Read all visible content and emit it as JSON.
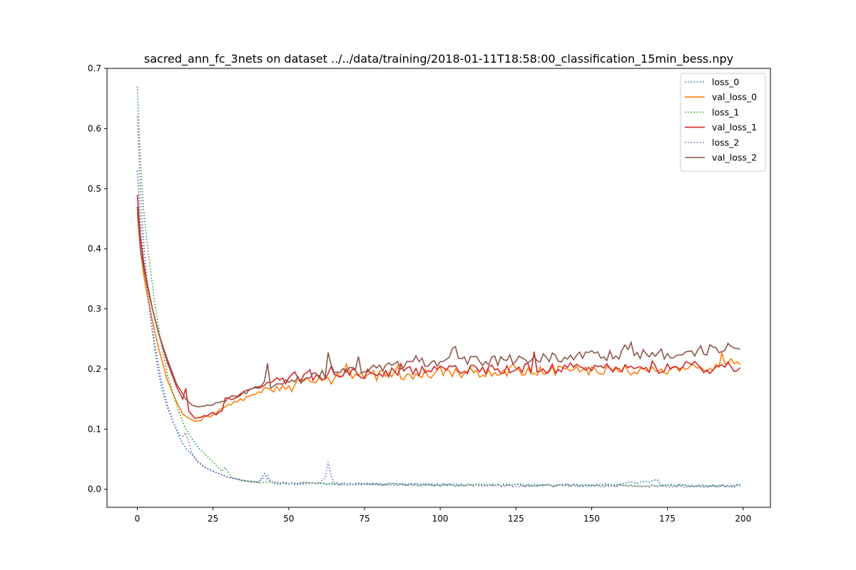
{
  "chart_data": {
    "type": "line",
    "title": "sacred_ann_fc_3nets on dataset ../../data/training/2018-01-11T18:58:00_classification_15min_bess.npy",
    "xlabel": "",
    "ylabel": "",
    "xlim": [
      -10,
      209
    ],
    "ylim": [
      -0.03,
      0.7
    ],
    "x_ticks": [
      0,
      25,
      50,
      75,
      100,
      125,
      150,
      175,
      200
    ],
    "y_ticks": [
      0.0,
      0.1,
      0.2,
      0.3,
      0.4,
      0.5,
      0.6,
      0.7
    ],
    "x_tick_labels": [
      "0",
      "25",
      "50",
      "75",
      "100",
      "125",
      "150",
      "175",
      "200"
    ],
    "y_tick_labels": [
      "0.0",
      "0.1",
      "0.2",
      "0.3",
      "0.4",
      "0.5",
      "0.6",
      "0.7"
    ],
    "grid": false,
    "legend_position": "top-right",
    "epochs": 200,
    "series": [
      {
        "name": "loss_0",
        "color": "#1f77b4",
        "style": "dotted",
        "anchors": [
          [
            0,
            0.53
          ],
          [
            1,
            0.45
          ],
          [
            2,
            0.39
          ],
          [
            3,
            0.34
          ],
          [
            4,
            0.3
          ],
          [
            5,
            0.26
          ],
          [
            6,
            0.225
          ],
          [
            7,
            0.195
          ],
          [
            8,
            0.17
          ],
          [
            10,
            0.135
          ],
          [
            12,
            0.11
          ],
          [
            14,
            0.085
          ],
          [
            16,
            0.068
          ],
          [
            18,
            0.058
          ],
          [
            20,
            0.045
          ],
          [
            22,
            0.037
          ],
          [
            25,
            0.03
          ],
          [
            30,
            0.02
          ],
          [
            35,
            0.015
          ],
          [
            40,
            0.012
          ],
          [
            42,
            0.028
          ],
          [
            43,
            0.018
          ],
          [
            45,
            0.012
          ],
          [
            50,
            0.01
          ],
          [
            75,
            0.009
          ],
          [
            100,
            0.008
          ],
          [
            125,
            0.007
          ],
          [
            150,
            0.006
          ],
          [
            172,
            0.014
          ],
          [
            173,
            0.006
          ],
          [
            199,
            0.006
          ]
        ]
      },
      {
        "name": "val_loss_0",
        "color": "#ff7f0e",
        "style": "solid",
        "anchors": [
          [
            0,
            0.46
          ],
          [
            1,
            0.4
          ],
          [
            2,
            0.36
          ],
          [
            3,
            0.33
          ],
          [
            5,
            0.28
          ],
          [
            7,
            0.235
          ],
          [
            10,
            0.18
          ],
          [
            13,
            0.145
          ],
          [
            15,
            0.125
          ],
          [
            17,
            0.118
          ],
          [
            19,
            0.113
          ],
          [
            21,
            0.115
          ],
          [
            25,
            0.125
          ],
          [
            30,
            0.14
          ],
          [
            35,
            0.15
          ],
          [
            40,
            0.16
          ],
          [
            43,
            0.17
          ],
          [
            45,
            0.16
          ],
          [
            50,
            0.17
          ],
          [
            55,
            0.176
          ],
          [
            60,
            0.18
          ],
          [
            70,
            0.188
          ],
          [
            80,
            0.19
          ],
          [
            100,
            0.193
          ],
          [
            125,
            0.197
          ],
          [
            150,
            0.198
          ],
          [
            175,
            0.198
          ],
          [
            199,
            0.205
          ]
        ]
      },
      {
        "name": "loss_1",
        "color": "#2ca02c",
        "style": "dotted",
        "anchors": [
          [
            0,
            0.67
          ],
          [
            1,
            0.55
          ],
          [
            2,
            0.47
          ],
          [
            3,
            0.42
          ],
          [
            4,
            0.38
          ],
          [
            5,
            0.34
          ],
          [
            6,
            0.3
          ],
          [
            8,
            0.24
          ],
          [
            10,
            0.19
          ],
          [
            12,
            0.155
          ],
          [
            14,
            0.125
          ],
          [
            16,
            0.1
          ],
          [
            18,
            0.085
          ],
          [
            20,
            0.07
          ],
          [
            22,
            0.06
          ],
          [
            25,
            0.045
          ],
          [
            28,
            0.03
          ],
          [
            29,
            0.036
          ],
          [
            31,
            0.02
          ],
          [
            35,
            0.014
          ],
          [
            40,
            0.011
          ],
          [
            50,
            0.01
          ],
          [
            75,
            0.009
          ],
          [
            100,
            0.007
          ],
          [
            125,
            0.007
          ],
          [
            150,
            0.006
          ],
          [
            175,
            0.006
          ],
          [
            199,
            0.005
          ]
        ]
      },
      {
        "name": "val_loss_1",
        "color": "#d62728",
        "style": "solid",
        "anchors": [
          [
            0,
            0.49
          ],
          [
            1,
            0.42
          ],
          [
            2,
            0.38
          ],
          [
            3,
            0.35
          ],
          [
            5,
            0.3
          ],
          [
            7,
            0.26
          ],
          [
            10,
            0.21
          ],
          [
            13,
            0.17
          ],
          [
            15,
            0.15
          ],
          [
            16,
            0.168
          ],
          [
            17,
            0.13
          ],
          [
            19,
            0.118
          ],
          [
            21,
            0.12
          ],
          [
            25,
            0.125
          ],
          [
            28,
            0.13
          ],
          [
            29,
            0.15
          ],
          [
            32,
            0.152
          ],
          [
            35,
            0.16
          ],
          [
            40,
            0.17
          ],
          [
            45,
            0.18
          ],
          [
            50,
            0.185
          ],
          [
            55,
            0.19
          ],
          [
            60,
            0.19
          ],
          [
            70,
            0.192
          ],
          [
            80,
            0.195
          ],
          [
            100,
            0.198
          ],
          [
            125,
            0.2
          ],
          [
            150,
            0.202
          ],
          [
            175,
            0.202
          ],
          [
            199,
            0.2
          ]
        ]
      },
      {
        "name": "loss_2",
        "color": "#9467bd",
        "style": "dotted",
        "anchors": [
          [
            0,
            0.62
          ],
          [
            1,
            0.5
          ],
          [
            2,
            0.42
          ],
          [
            3,
            0.36
          ],
          [
            4,
            0.31
          ],
          [
            5,
            0.27
          ],
          [
            6,
            0.235
          ],
          [
            8,
            0.18
          ],
          [
            10,
            0.14
          ],
          [
            12,
            0.11
          ],
          [
            14,
            0.09
          ],
          [
            15,
            0.088
          ],
          [
            16,
            0.094
          ],
          [
            17,
            0.078
          ],
          [
            18,
            0.06
          ],
          [
            20,
            0.047
          ],
          [
            22,
            0.038
          ],
          [
            25,
            0.03
          ],
          [
            30,
            0.02
          ],
          [
            35,
            0.014
          ],
          [
            40,
            0.011
          ],
          [
            42,
            0.02
          ],
          [
            43,
            0.026
          ],
          [
            44,
            0.012
          ],
          [
            50,
            0.01
          ],
          [
            60,
            0.009
          ],
          [
            62,
            0.02
          ],
          [
            63,
            0.045
          ],
          [
            64,
            0.02
          ],
          [
            65,
            0.009
          ],
          [
            75,
            0.008
          ],
          [
            100,
            0.007
          ],
          [
            125,
            0.006
          ],
          [
            150,
            0.006
          ],
          [
            175,
            0.005
          ],
          [
            199,
            0.005
          ]
        ]
      },
      {
        "name": "val_loss_2",
        "color": "#8c564b",
        "style": "solid",
        "anchors": [
          [
            0,
            0.47
          ],
          [
            1,
            0.4
          ],
          [
            2,
            0.37
          ],
          [
            3,
            0.345
          ],
          [
            5,
            0.3
          ],
          [
            7,
            0.26
          ],
          [
            10,
            0.215
          ],
          [
            13,
            0.175
          ],
          [
            16,
            0.15
          ],
          [
            18,
            0.14
          ],
          [
            20,
            0.137
          ],
          [
            25,
            0.14
          ],
          [
            30,
            0.15
          ],
          [
            35,
            0.16
          ],
          [
            40,
            0.17
          ],
          [
            42,
            0.178
          ],
          [
            43,
            0.21
          ],
          [
            44,
            0.17
          ],
          [
            46,
            0.175
          ],
          [
            50,
            0.18
          ],
          [
            55,
            0.185
          ],
          [
            60,
            0.19
          ],
          [
            62,
            0.195
          ],
          [
            63,
            0.225
          ],
          [
            64,
            0.198
          ],
          [
            70,
            0.2
          ],
          [
            80,
            0.205
          ],
          [
            90,
            0.21
          ],
          [
            100,
            0.212
          ],
          [
            125,
            0.215
          ],
          [
            150,
            0.222
          ],
          [
            175,
            0.225
          ],
          [
            199,
            0.237
          ]
        ]
      }
    ]
  }
}
